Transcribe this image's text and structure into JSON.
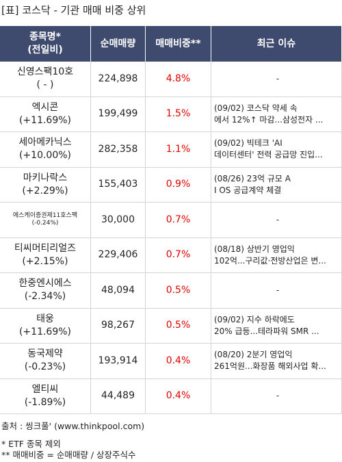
{
  "title": "[표] 코스닥 - 기관 매매 비중 상위",
  "table": {
    "header": [
      [
        "종목명*",
        "(전일비)"
      ],
      [
        "순매매량"
      ],
      [
        "매매비중**"
      ],
      [
        "최근 이슈"
      ]
    ],
    "rows": [
      {
        "name": "신영스팩10호",
        "change": "( - )",
        "volume": "224,898",
        "ratio": "4.8%",
        "issue": [
          "-"
        ]
      },
      {
        "name": "엑시콘",
        "change": "(+11.69%)",
        "volume": "199,499",
        "ratio": "1.5%",
        "issue": [
          "(09/02) 코스닥 약세 속",
          "에서 12%↑ 마감...삼성전자 ..."
        ]
      },
      {
        "name": "세아메카닉스",
        "change": "(+10.00%)",
        "volume": "282,358",
        "ratio": "1.1%",
        "issue": [
          "(09/02) 빅테크 'AI",
          "데이터센터' 전력 공급망 진입..."
        ]
      },
      {
        "name": "마키나락스",
        "change": "(+2.29%)",
        "volume": "155,403",
        "ratio": "0.9%",
        "issue": [
          "(08/26) 23억 규모 A",
          "I OS 공급계약 체결"
        ]
      },
      {
        "name": "에스케이증권제11호스팩",
        "change": "(-0.24%)",
        "volume": "30,000",
        "ratio": "0.7%",
        "issue": [
          "-"
        ],
        "small": true
      },
      {
        "name": "티씨머티리얼즈",
        "change": "(+2.15%)",
        "volume": "229,406",
        "ratio": "0.7%",
        "issue": [
          "(08/18) 상반기 영업익",
          "102억...구리값·전방산업은 변..."
        ]
      },
      {
        "name": "한중엔시에스",
        "change": "(-2.34%)",
        "volume": "48,094",
        "ratio": "0.5%",
        "issue": [
          "-"
        ]
      },
      {
        "name": "태웅",
        "change": "(+11.69%)",
        "volume": "98,267",
        "ratio": "0.5%",
        "issue": [
          "(09/02) 지수 하락에도",
          "20% 급등...테라파워 SMR ..."
        ]
      },
      {
        "name": "동국제약",
        "change": "(-0.23%)",
        "volume": "193,914",
        "ratio": "0.4%",
        "issue": [
          "(08/20) 2분기 영업익",
          "261억원...화장품 해외사업 확..."
        ]
      },
      {
        "name": "엘티씨",
        "change": "(-1.89%)",
        "volume": "44,489",
        "ratio": "0.4%",
        "issue": [
          "-"
        ]
      }
    ]
  },
  "footer": [
    "출처 : 씽크풀' (www.thinkpool.com)",
    "* ETF 종목 제외",
    "** 매매비중 = 순매매량 / 상장주식수"
  ]
}
